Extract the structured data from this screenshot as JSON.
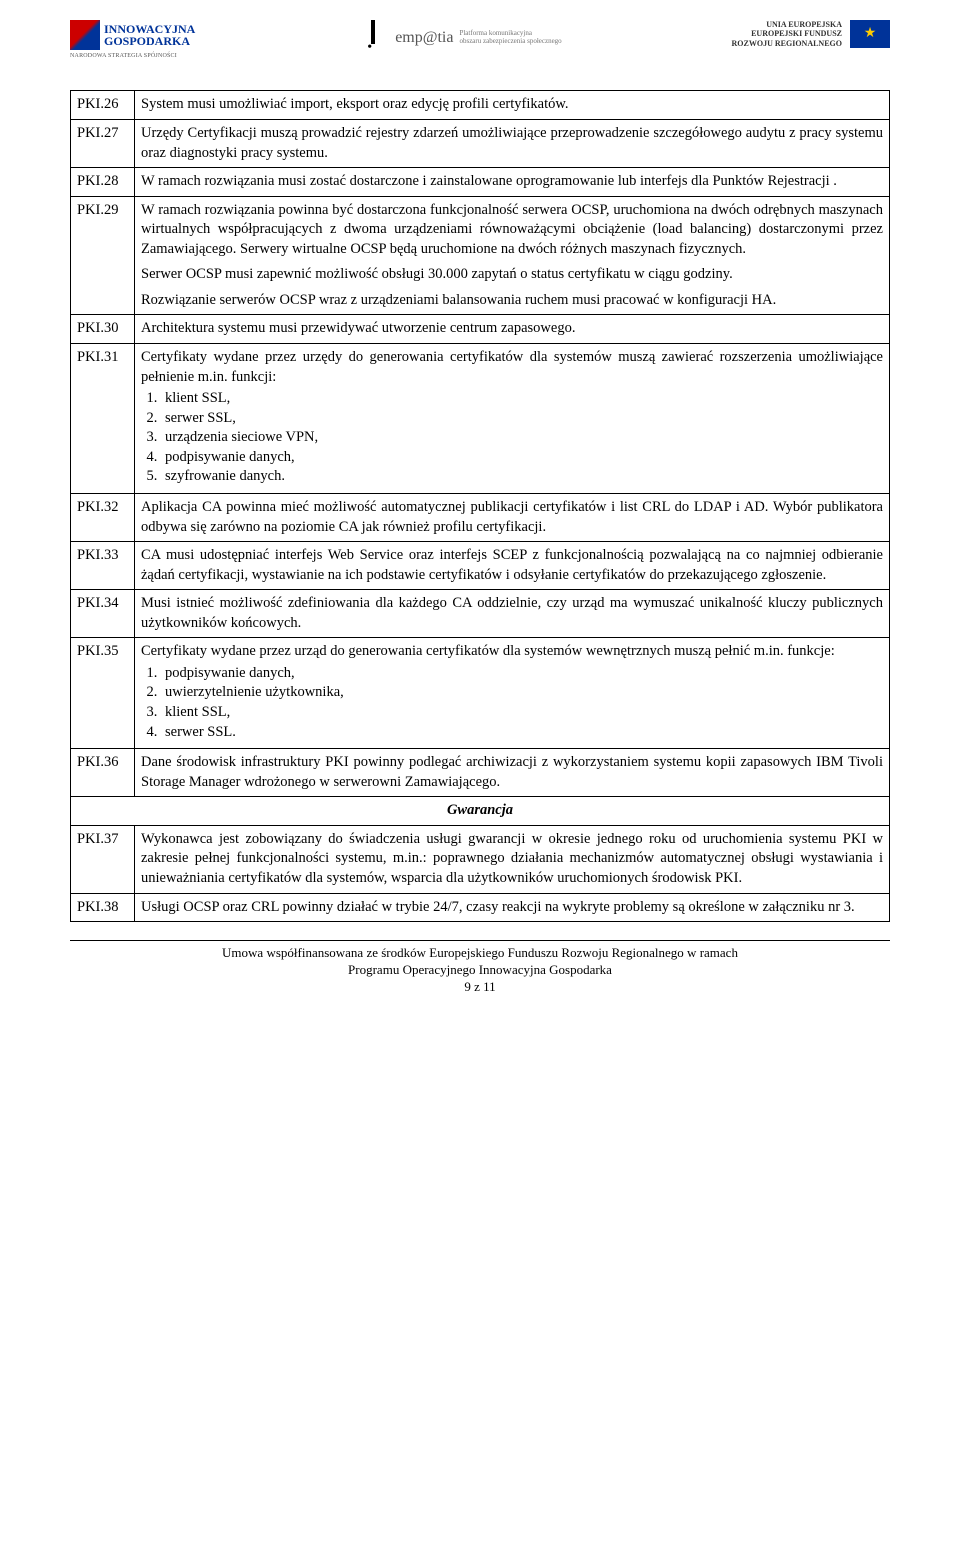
{
  "header": {
    "left": {
      "title1": "INNOWACYJNA",
      "title2": "GOSPODARKA",
      "sub": "NARODOWA STRATEGIA SPÓJNOŚCI"
    },
    "center": {
      "brand": "emp@tia",
      "sub1": "Platforma komunikacyjna",
      "sub2": "obszaru zabezpieczenia społecznego"
    },
    "right": {
      "line1": "UNIA EUROPEJSKA",
      "line2": "EUROPEJSKI FUNDUSZ",
      "line3": "ROZWOJU REGIONALNEGO"
    }
  },
  "rows": [
    {
      "code": "PKI.26",
      "paras": [
        "System musi umożliwiać import, eksport oraz edycję profili certyfikatów."
      ]
    },
    {
      "code": "PKI.27",
      "paras": [
        "Urzędy Certyfikacji muszą prowadzić rejestry zdarzeń umożliwiające przeprowadzenie szczegółowego audytu z pracy systemu oraz diagnostyki pracy systemu."
      ]
    },
    {
      "code": "PKI.28",
      "paras": [
        "W ramach rozwiązania musi zostać dostarczone i zainstalowane oprogramowanie lub interfejs dla Punktów Rejestracji ."
      ]
    },
    {
      "code": "PKI.29",
      "paras": [
        "W ramach rozwiązania powinna być dostarczona funkcjonalność serwera OCSP, uruchomiona na dwóch odrębnych maszynach wirtualnych współpracujących z dwoma urządzeniami równoważącymi obciążenie (load balancing) dostarczonymi przez Zamawiającego. Serwery wirtualne OCSP będą uruchomione na dwóch różnych maszynach fizycznych.",
        "Serwer OCSP musi zapewnić możliwość obsługi 30.000 zapytań o status certyfikatu w ciągu godziny.",
        "Rozwiązanie serwerów OCSP wraz z urządzeniami balansowania ruchem musi pracować w konfiguracji HA."
      ]
    },
    {
      "code": "PKI.30",
      "paras": [
        "Architektura systemu musi przewidywać utworzenie centrum zapasowego."
      ]
    },
    {
      "code": "PKI.31",
      "intro": "Certyfikaty wydane przez urzędy do generowania certyfikatów  dla systemów muszą zawierać rozszerzenia umożliwiające pełnienie m.in. funkcji:",
      "list": [
        "klient SSL,",
        "serwer SSL,",
        "urządzenia sieciowe VPN,",
        "podpisywanie danych,",
        "szyfrowanie danych."
      ]
    },
    {
      "code": "PKI.32",
      "paras": [
        "Aplikacja CA powinna mieć możliwość automatycznej publikacji certyfikatów i list CRL do LDAP i AD. Wybór publikatora odbywa się zarówno na poziomie CA jak również profilu certyfikacji."
      ]
    },
    {
      "code": "PKI.33",
      "paras": [
        "CA musi udostępniać interfejs Web Service oraz interfejs SCEP z funkcjonalnością pozwalającą na co najmniej odbieranie żądań certyfikacji, wystawianie na ich podstawie certyfikatów i odsyłanie certyfikatów do przekazującego zgłoszenie."
      ]
    },
    {
      "code": "PKI.34",
      "paras": [
        "Musi istnieć możliwość zdefiniowania dla każdego CA oddzielnie, czy urząd ma wymuszać unikalność kluczy publicznych użytkowników końcowych."
      ]
    },
    {
      "code": "PKI.35",
      "intro": "Certyfikaty wydane przez  urząd do generowania certyfikatów dla systemów wewnętrznych muszą pełnić m.in. funkcje:",
      "list": [
        "podpisywanie danych,",
        "uwierzytelnienie użytkownika,",
        "klient SSL,",
        "serwer SSL."
      ]
    },
    {
      "code": "PKI.36",
      "paras": [
        "Dane środowisk infrastruktury PKI powinny podlegać archiwizacji z wykorzystaniem systemu kopii zapasowych IBM Tivoli Storage Manager wdrożonego w serwerowni Zamawiającego."
      ]
    }
  ],
  "section_title": "Gwarancja",
  "rows_after": [
    {
      "code": "PKI.37",
      "paras": [
        "Wykonawca jest zobowiązany do świadczenia usługi gwarancji w okresie jednego roku od uruchomienia systemu PKI w zakresie pełnej funkcjonalności systemu, m.in.: poprawnego działania mechanizmów automatycznej obsługi wystawiania i unieważniania certyfikatów dla systemów, wsparcia dla użytkowników uruchomionych środowisk PKI."
      ]
    },
    {
      "code": "PKI.38",
      "paras": [
        "Usługi OCSP oraz CRL powinny działać w trybie 24/7, czasy reakcji na wykryte problemy są określone w załączniku nr 3."
      ]
    }
  ],
  "footer": {
    "line1": "Umowa współfinansowana ze środków Europejskiego Funduszu Rozwoju Regionalnego w ramach",
    "line2": "Programu Operacyjnego Innowacyjna Gospodarka",
    "page": "9 z 11"
  }
}
